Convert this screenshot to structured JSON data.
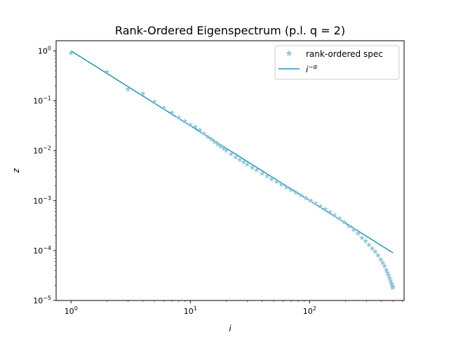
{
  "chart_data": {
    "type": "scatter",
    "title": "Rank-Ordered Eigenspectrum (p.l. q = 2)",
    "xlabel": "i",
    "ylabel": "z",
    "xscale": "log",
    "yscale": "log",
    "xlim": [
      0.75,
      620
    ],
    "ylim": [
      1e-05,
      1.6
    ],
    "grid": false,
    "legend": "top-right",
    "x_ticks": [
      {
        "value": 1,
        "mantissa": "10",
        "exponent": "0"
      },
      {
        "value": 10,
        "mantissa": "10",
        "exponent": "1"
      },
      {
        "value": 100,
        "mantissa": "10",
        "exponent": "2"
      }
    ],
    "y_ticks": [
      {
        "value": 1e-05,
        "mantissa": "10",
        "exponent": "−5"
      },
      {
        "value": 0.0001,
        "mantissa": "10",
        "exponent": "−4"
      },
      {
        "value": 0.001,
        "mantissa": "10",
        "exponent": "−3"
      },
      {
        "value": 0.01,
        "mantissa": "10",
        "exponent": "−2"
      },
      {
        "value": 0.1,
        "mantissa": "10",
        "exponent": "−1"
      },
      {
        "value": 1,
        "mantissa": "10",
        "exponent": "0"
      }
    ],
    "series": [
      {
        "name": "rank-ordered spec",
        "kind": "scatter",
        "marker": "star",
        "color": "#92c6d8",
        "x": [
          1,
          2,
          3,
          4,
          5,
          6,
          7,
          8,
          9,
          10,
          11,
          12,
          13,
          14,
          15,
          16,
          17,
          18,
          19,
          20,
          22,
          24,
          26,
          28,
          30,
          33,
          36,
          40,
          44,
          48,
          53,
          58,
          64,
          70,
          77,
          85,
          93,
          102,
          112,
          123,
          135,
          148,
          162,
          178,
          195,
          214,
          235,
          255,
          275,
          295,
          315,
          335,
          355,
          375,
          395,
          410,
          425,
          440,
          450,
          460,
          470,
          478,
          485,
          490,
          494,
          497,
          500
        ],
        "y": [
          0.9,
          0.38,
          0.17,
          0.14,
          0.095,
          0.072,
          0.058,
          0.046,
          0.039,
          0.033,
          0.03,
          0.026,
          0.022,
          0.019,
          0.017,
          0.015,
          0.0135,
          0.0122,
          0.011,
          0.0101,
          0.0086,
          0.0074,
          0.0066,
          0.0059,
          0.0053,
          0.0046,
          0.0041,
          0.0035,
          0.0031,
          0.0027,
          0.0024,
          0.0021,
          0.00185,
          0.00165,
          0.00145,
          0.00128,
          0.00113,
          0.001,
          0.00088,
          0.00077,
          0.00068,
          0.00059,
          0.00051,
          0.00044,
          0.00037,
          0.00031,
          0.00026,
          0.00022,
          0.00018,
          0.000155,
          0.00013,
          0.00011,
          9.5e-05,
          8e-05,
          6.6e-05,
          5.7e-05,
          4.9e-05,
          4.1e-05,
          3.6e-05,
          3.2e-05,
          2.8e-05,
          2.5e-05,
          2.2e-05,
          2.1e-05,
          1.95e-05,
          1.85e-05,
          1.8e-05
        ]
      },
      {
        "name": "i^{-α}",
        "kind": "line",
        "color": "#2a8fb5",
        "x": [
          1,
          500
        ],
        "y": [
          1.0,
          9e-05
        ]
      }
    ]
  },
  "legend": {
    "spec_label": "rank-ordered spec",
    "fit_label_base": "i",
    "fit_label_sup": "−α"
  }
}
